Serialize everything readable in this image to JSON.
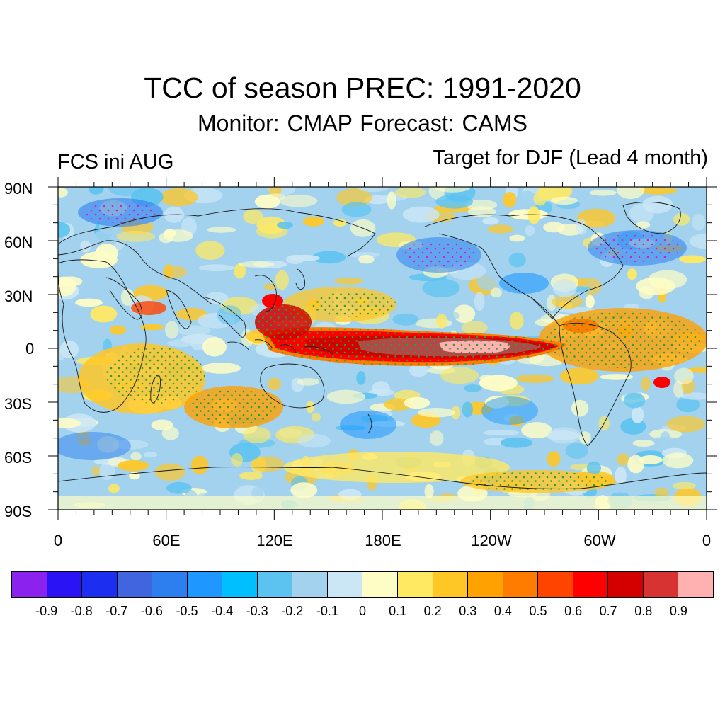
{
  "title": "TCC of season PREC: 1991-2020",
  "subtitle": "Monitor: CMAP   Forecast: CAMS",
  "left_label": "FCS ini AUG",
  "right_label": "Target for DJF (Lead 4 month)",
  "lat_ticks": [
    "90N",
    "60N",
    "30N",
    "0",
    "30S",
    "60S",
    "90S"
  ],
  "lon_ticks": [
    "0",
    "60E",
    "120E",
    "180E",
    "120W",
    "60W",
    "0"
  ],
  "colorbar": {
    "labels": [
      "-0.9",
      "-0.8",
      "-0.7",
      "-0.6",
      "-0.5",
      "-0.4",
      "-0.3",
      "-0.2",
      "-0.1",
      "0",
      "0.1",
      "0.2",
      "0.3",
      "0.4",
      "0.5",
      "0.6",
      "0.7",
      "0.8",
      "0.9"
    ],
    "colors": [
      "#8b22ee",
      "#2a14f5",
      "#1c2ef0",
      "#4065de",
      "#2d7ff0",
      "#1e98ff",
      "#00bfff",
      "#5cc3f0",
      "#a2d2ee",
      "#cbe7f6",
      "#fffdc6",
      "#ffe963",
      "#ffc725",
      "#ffa100",
      "#ff7c00",
      "#ff4400",
      "#ff0000",
      "#d40000",
      "#d83333",
      "#ffb0b0"
    ]
  }
}
